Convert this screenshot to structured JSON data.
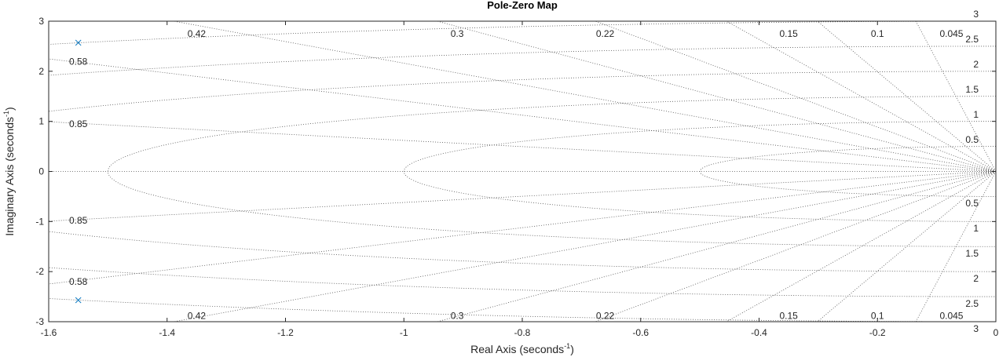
{
  "chart_data": {
    "type": "scatter",
    "title": "Pole-Zero Map",
    "xlabel_main": "Real Axis (seconds",
    "xlabel_sup": "-1",
    "xlabel_end": ")",
    "ylabel_main": "Imaginary Axis (seconds",
    "ylabel_sup": "-1",
    "ylabel_end": ")",
    "xlim": [
      -1.6,
      0
    ],
    "ylim": [
      -3,
      3
    ],
    "xticks": [
      -1.6,
      -1.4,
      -1.2,
      -1,
      -0.8,
      -0.6,
      -0.4,
      -0.2,
      0
    ],
    "xtick_labels": [
      "-1.6",
      "-1.4",
      "-1.2",
      "-1",
      "-0.8",
      "-0.6",
      "-0.4",
      "-0.2",
      "0"
    ],
    "yticks": [
      -3,
      -2,
      -1,
      0,
      1,
      2,
      3
    ],
    "ytick_labels": [
      "-3",
      "-2",
      "-1",
      "0",
      "1",
      "2",
      "3"
    ],
    "poles": [
      {
        "x": -1.55,
        "y": 2.57
      },
      {
        "x": -1.55,
        "y": -2.57
      }
    ],
    "damping_ratios": [
      0.045,
      0.1,
      0.15,
      0.22,
      0.3,
      0.42,
      0.58,
      0.85
    ],
    "damping_labels_top": [
      {
        "text": "0.42",
        "x": -1.35,
        "y": 2.75
      },
      {
        "text": "0.3",
        "x": -0.91,
        "y": 2.75
      },
      {
        "text": "0.22",
        "x": -0.66,
        "y": 2.75
      },
      {
        "text": "0.15",
        "x": -0.35,
        "y": 2.75
      },
      {
        "text": "0.1",
        "x": -0.2,
        "y": 2.75
      },
      {
        "text": "0.045",
        "x": -0.075,
        "y": 2.75
      },
      {
        "text": "0.58",
        "x": -1.55,
        "y": 2.19
      },
      {
        "text": "0.85",
        "x": -1.55,
        "y": 0.95
      }
    ],
    "damping_labels_bottom": [
      {
        "text": "0.42",
        "x": -1.35,
        "y": -2.88
      },
      {
        "text": "0.3",
        "x": -0.91,
        "y": -2.88
      },
      {
        "text": "0.22",
        "x": -0.66,
        "y": -2.88
      },
      {
        "text": "0.15",
        "x": -0.35,
        "y": -2.88
      },
      {
        "text": "0.1",
        "x": -0.2,
        "y": -2.88
      },
      {
        "text": "0.045",
        "x": -0.075,
        "y": -2.88
      },
      {
        "text": "0.58",
        "x": -1.55,
        "y": -2.2
      },
      {
        "text": "0.85",
        "x": -1.55,
        "y": -0.98
      }
    ],
    "natural_freqs": [
      0.5,
      1,
      1.5,
      2,
      2.5,
      3
    ],
    "freq_labels_top": [
      "3",
      "2.5",
      "2",
      "1.5",
      "1",
      "0.5"
    ],
    "freq_labels_bottom": [
      "0.5",
      "1",
      "1.5",
      "2",
      "2.5",
      "3"
    ],
    "grid": true,
    "pole_color": "#0072bd",
    "grid_color": "#555555"
  }
}
